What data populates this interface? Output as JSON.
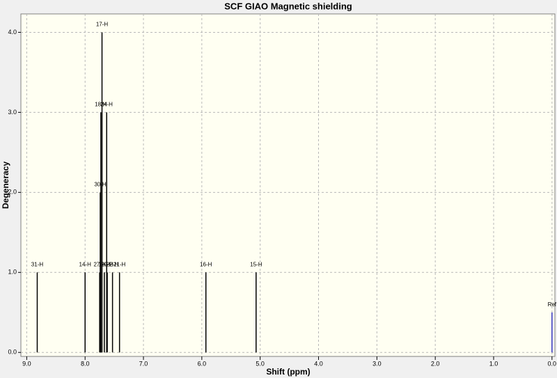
{
  "chart_data": {
    "type": "stem",
    "title": "SCF GIAO Magnetic shielding",
    "x_label": "Shift (ppm)",
    "y_label": "Degeneracy",
    "x": [
      8.82,
      8.0,
      7.75,
      7.74,
      7.73,
      7.71,
      7.67,
      7.63,
      7.62,
      7.53,
      7.41,
      5.93,
      5.07,
      0.0
    ],
    "values": [
      1,
      1,
      1,
      2,
      3,
      4,
      1,
      3,
      1,
      1,
      1,
      1,
      1,
      0.5
    ],
    "labels": [
      "31-H",
      "14-H",
      "27-H",
      "30-H",
      "18-H",
      "17-H",
      "19-H",
      "24-H",
      "20-H",
      "22-H",
      "21-H",
      "16-H",
      "15-H",
      "Ref"
    ],
    "colors": [
      "#000000",
      "#000000",
      "#000000",
      "#000000",
      "#000000",
      "#000000",
      "#000000",
      "#000000",
      "#000000",
      "#000000",
      "#000000",
      "#000000",
      "#000000",
      "#3030c0"
    ],
    "xlim": [
      9.1,
      -0.05
    ],
    "ylim": [
      -0.05,
      4.23
    ],
    "xticks": [
      {
        "value": 9,
        "label": "9.0"
      },
      {
        "value": 8,
        "label": "8.0"
      },
      {
        "value": 7,
        "label": "7.0"
      },
      {
        "value": 6,
        "label": "6.0"
      },
      {
        "value": 5,
        "label": "5.0"
      },
      {
        "value": 4,
        "label": "4.0"
      },
      {
        "value": 3,
        "label": "3.0"
      },
      {
        "value": 2,
        "label": "2.0"
      },
      {
        "value": 1,
        "label": "1.0"
      },
      {
        "value": 0,
        "label": "0.0"
      }
    ],
    "yticks": [
      {
        "value": 0,
        "label": "0.0"
      },
      {
        "value": 1,
        "label": "1.0"
      },
      {
        "value": 2,
        "label": "2.0"
      },
      {
        "value": 3,
        "label": "3.0"
      },
      {
        "value": 4,
        "label": "4.0"
      }
    ],
    "grid": true
  }
}
